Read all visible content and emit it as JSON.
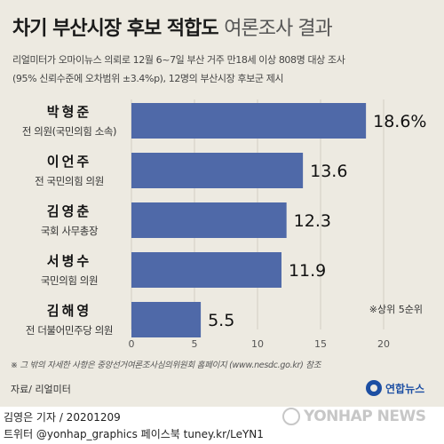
{
  "header": {
    "title_bold": "차기 부산시장 후보 적합도",
    "title_light": "여론조사 결과",
    "subtitle_line1": "리얼미터가 오마이뉴스 의뢰로 12월 6~7일 부산 거주 만18세 이상 808명 대상 조사",
    "subtitle_line2": "(95% 신뢰수준에 오차범위 ±3.4%p), 12명의 부산시장 후보군 제시"
  },
  "chart_data": {
    "type": "bar",
    "orientation": "horizontal",
    "categories": [
      "박형준",
      "이언주",
      "김영춘",
      "서병수",
      "김해영"
    ],
    "descriptions": [
      "전 의원(국민의힘 소속)",
      "전 국민의힘 의원",
      "국회 사무총장",
      "국민의힘 의원",
      "전 더불어민주당 의원"
    ],
    "values": [
      18.6,
      13.6,
      12.3,
      11.9,
      5.5
    ],
    "value_labels": [
      "18.6%",
      "13.6",
      "12.3",
      "11.9",
      "5.5"
    ],
    "xlim": [
      0,
      20
    ],
    "ticks": [
      0,
      5,
      10,
      15,
      20
    ],
    "annotation": "※상위 5순위",
    "bar_color": "#4f69a8",
    "grid": true
  },
  "footnote": "※ 그 밖의 자세한 사항은 중앙선거여론조사심의위원회 홈페이지 (www.nesdc.go.kr) 참조",
  "source": "자료/ 리얼미터",
  "logo_text": "연합뉴스",
  "credit_line1": "김영은 기자 / 20201209",
  "credit_line2": "트위터 @yonhap_graphics  페이스북 tuney.kr/LeYN1",
  "watermark_text": "YONHAP NEWS"
}
